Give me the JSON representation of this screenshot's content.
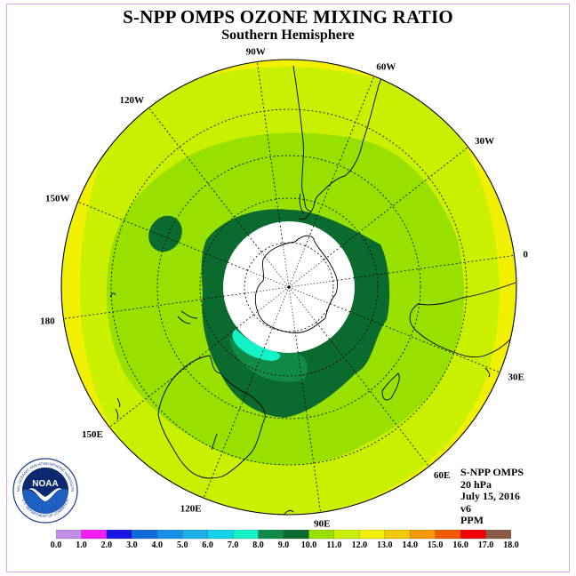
{
  "title": "S-NPP OMPS OZONE MIXING RATIO",
  "subtitle": "Southern Hemisphere",
  "longitude_labels": [
    {
      "text": "90W",
      "lon": -90
    },
    {
      "text": "60W",
      "lon": -60
    },
    {
      "text": "30W",
      "lon": -30
    },
    {
      "text": "0",
      "lon": 0
    },
    {
      "text": "30E",
      "lon": 30
    },
    {
      "text": "60E",
      "lon": 60
    },
    {
      "text": "90E",
      "lon": 90
    },
    {
      "text": "120E",
      "lon": 120
    },
    {
      "text": "150E",
      "lon": 150
    },
    {
      "text": "180",
      "lon": 180
    },
    {
      "text": "150W",
      "lon": -150
    },
    {
      "text": "120W",
      "lon": -120
    }
  ],
  "info": {
    "instrument": "S-NPP OMPS",
    "level": "20 hPa",
    "date": "July 15, 2016",
    "version": "v6",
    "units": "PPM"
  },
  "logo": {
    "text": "NOAA",
    "ring_text_top": "NATIONAL OCEANIC AND ATMOSPHERIC ADMINISTRATION",
    "ring_text_bottom": "U.S. DEPARTMENT OF COMMERCE"
  },
  "colorbar": {
    "ticks": [
      "0.0",
      "1.0",
      "2.0",
      "3.0",
      "4.0",
      "5.0",
      "6.0",
      "7.0",
      "8.0",
      "9.0",
      "10.0",
      "11.0",
      "12.0",
      "13.0",
      "14.0",
      "15.0",
      "16.0",
      "17.0",
      "18.0"
    ],
    "colors": [
      "#c08de8",
      "#e0b0f0",
      "#f21cf2",
      "#1a13e6",
      "#0f6ad9",
      "#178ee8",
      "#1ab0e6",
      "#16d2ea",
      "#14f2c8",
      "#118a46",
      "#0b6a2e",
      "#98e000",
      "#c8f000",
      "#f0f000",
      "#f4c800",
      "#f49a00",
      "#f05a00",
      "#f00000",
      "#8a5a46"
    ]
  },
  "map_colors": {
    "ppm_10_11": "#98e000",
    "ppm_11_12": "#c8f000",
    "ppm_12_13": "#f0f000",
    "ppm_9_10": "#0b6a2e",
    "ppm_8_9": "#118a46",
    "ppm_7_8": "#14f2c8",
    "polar_night": "#ffffff"
  }
}
